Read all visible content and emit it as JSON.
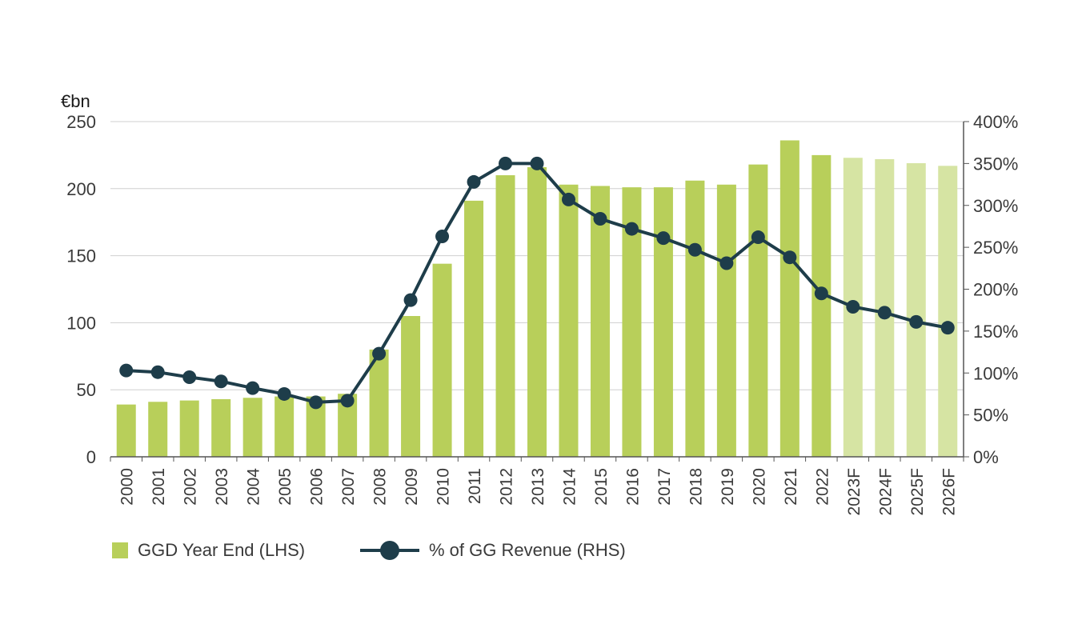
{
  "chart_data": {
    "type": "bar",
    "unit_label": "€bn",
    "categories": [
      "2000",
      "2001",
      "2002",
      "2003",
      "2004",
      "2005",
      "2006",
      "2007",
      "2008",
      "2009",
      "2010",
      "2011",
      "2012",
      "2013",
      "2014",
      "2015",
      "2016",
      "2017",
      "2018",
      "2019",
      "2020",
      "2021",
      "2022",
      "2023F",
      "2024F",
      "2025F",
      "2026F"
    ],
    "forecast_categories": [
      "2023F",
      "2024F",
      "2025F",
      "2026F"
    ],
    "y_left": {
      "min": 0,
      "max": 250,
      "ticks": [
        "0",
        "50",
        "100",
        "150",
        "200",
        "250"
      ]
    },
    "y_right": {
      "min": 0,
      "max": 400,
      "ticks": [
        "0%",
        "50%",
        "100%",
        "150%",
        "200%",
        "250%",
        "300%",
        "350%",
        "400%"
      ]
    },
    "gridlines": true,
    "legend_position": "bottom-left",
    "series": [
      {
        "name": "GGD Year End (LHS)",
        "type": "bar",
        "axis": "left",
        "color": "#b8cf5a",
        "forecast_color": "#d6e4a3",
        "values": [
          39,
          41,
          42,
          43,
          44,
          45,
          45,
          47,
          80,
          105,
          144,
          191,
          210,
          216,
          203,
          202,
          201,
          201,
          206,
          203,
          218,
          236,
          225,
          223,
          222,
          219,
          217
        ]
      },
      {
        "name": "% of GG Revenue (RHS)",
        "type": "line",
        "axis": "right",
        "color": "#1e3d4a",
        "values": [
          103,
          101,
          95,
          90,
          82,
          75,
          65,
          67,
          123,
          187,
          263,
          328,
          350,
          350,
          307,
          284,
          272,
          261,
          247,
          231,
          262,
          238,
          195,
          179,
          172,
          161,
          154
        ]
      }
    ]
  }
}
